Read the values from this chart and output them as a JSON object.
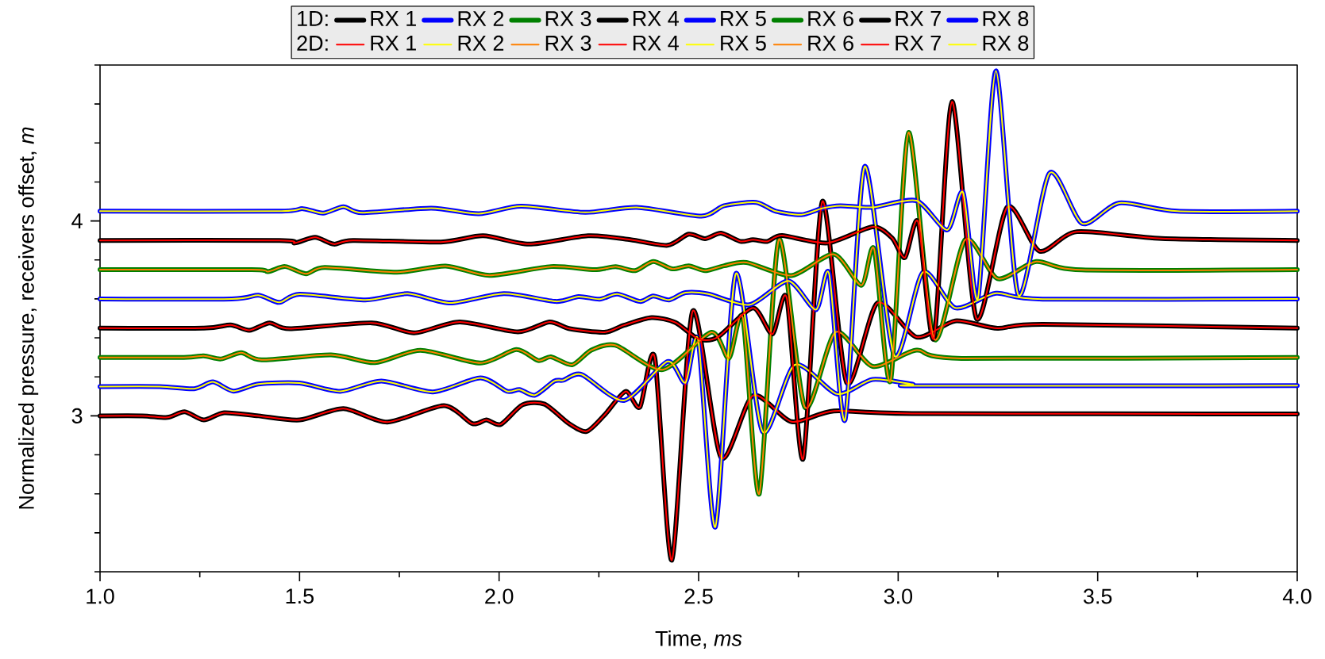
{
  "chart_data": {
    "type": "line",
    "xlabel": "Time, *ms*",
    "ylabel": "Normalized pressure, receivers offset, *m*",
    "annotations": [
      "1D:",
      "2D:"
    ],
    "legend": "top",
    "line_style": "solid",
    "xlim": [
      1.0,
      4.0
    ],
    "ylim": [
      2.2,
      4.8
    ],
    "xticks": [
      {
        "value": 1.0,
        "label": "1.0"
      },
      {
        "value": 1.25,
        "label": null
      },
      {
        "value": 1.5,
        "label": "1.5"
      },
      {
        "value": 1.75,
        "label": null
      },
      {
        "value": 2.0,
        "label": "2.0"
      },
      {
        "value": 2.25,
        "label": null
      },
      {
        "value": 2.5,
        "label": "2.5"
      },
      {
        "value": 2.75,
        "label": null
      },
      {
        "value": 3.0,
        "label": "3.0"
      },
      {
        "value": 3.25,
        "label": null
      },
      {
        "value": 3.5,
        "label": "3.5"
      },
      {
        "value": 3.75,
        "label": null
      },
      {
        "value": 4.0,
        "label": "4.0"
      }
    ],
    "yticks": [
      {
        "value": 2.2,
        "label": null
      },
      {
        "value": 2.4,
        "label": null
      },
      {
        "value": 2.6,
        "label": null
      },
      {
        "value": 2.8,
        "label": null
      },
      3,
      {
        "value": 3.2,
        "label": null
      },
      {
        "value": 3.4,
        "label": null
      },
      {
        "value": 3.6,
        "label": null
      },
      {
        "value": 3.8,
        "label": null
      },
      4,
      {
        "value": 4.2,
        "label": null
      },
      {
        "value": 4.4,
        "label": null
      },
      {
        "value": 4.6,
        "label": null
      },
      {
        "value": 4.8,
        "label": null
      }
    ],
    "series": [
      {
        "name": "RX 1",
        "color": "#000000",
        "x": [
          1.0,
          1.106,
          1.169,
          1.212,
          1.26,
          1.311,
          1.397,
          1.5,
          1.61,
          1.72,
          1.862,
          1.933,
          1.968,
          2.004,
          2.059,
          2.114,
          2.174,
          2.219,
          2.264,
          2.317,
          2.353,
          2.39,
          2.433,
          2.485,
          2.556,
          2.636,
          2.733,
          2.839,
          3.034,
          4.0
        ],
        "values": [
          3.0,
          3.0,
          2.992,
          3.021,
          2.979,
          3.016,
          3.0,
          2.979,
          3.037,
          2.968,
          3.052,
          2.96,
          2.979,
          2.956,
          3.057,
          3.06,
          2.962,
          2.92,
          3.004,
          3.125,
          3.045,
          3.299,
          2.26,
          3.537,
          2.787,
          3.104,
          2.97,
          3.025,
          3.012,
          3.01
        ]
      },
      {
        "name": "RX 2",
        "color": "#0000ff",
        "x": [
          1.0,
          1.15,
          1.236,
          1.283,
          1.334,
          1.397,
          1.5,
          1.602,
          1.705,
          1.834,
          1.953,
          2.02,
          2.051,
          2.09,
          2.138,
          2.161,
          2.207,
          2.313,
          2.422,
          2.467,
          2.499,
          2.542,
          2.593,
          2.66,
          2.741,
          2.847,
          2.936,
          3.036,
          3.062,
          4.0
        ],
        "values": [
          3.15,
          3.15,
          3.139,
          3.174,
          3.127,
          3.163,
          3.168,
          3.126,
          3.179,
          3.123,
          3.195,
          3.126,
          3.135,
          3.106,
          3.178,
          3.183,
          3.212,
          3.079,
          3.279,
          3.17,
          3.387,
          2.43,
          3.729,
          2.92,
          3.262,
          3.112,
          3.187,
          3.162,
          3.154,
          3.155
        ]
      },
      {
        "name": "RX 3",
        "color": "#008000",
        "x": [
          1.0,
          1.21,
          1.26,
          1.303,
          1.354,
          1.405,
          1.579,
          1.689,
          1.803,
          1.953,
          2.043,
          2.098,
          2.13,
          2.183,
          2.231,
          2.292,
          2.41,
          2.532,
          2.576,
          2.611,
          2.652,
          2.701,
          2.766,
          2.843,
          2.936,
          3.046,
          3.159,
          4.0
        ],
        "values": [
          3.3,
          3.3,
          3.308,
          3.292,
          3.324,
          3.287,
          3.313,
          3.273,
          3.336,
          3.271,
          3.34,
          3.284,
          3.303,
          3.262,
          3.337,
          3.362,
          3.237,
          3.429,
          3.295,
          3.5,
          2.6,
          3.904,
          3.045,
          3.429,
          3.254,
          3.337,
          3.295,
          3.3
        ]
      },
      {
        "name": "RX 4",
        "color": "#000000",
        "x": [
          1.0,
          1.26,
          1.327,
          1.374,
          1.425,
          1.476,
          1.681,
          1.787,
          1.901,
          2.047,
          2.126,
          2.177,
          2.264,
          2.313,
          2.382,
          2.442,
          2.499,
          2.548,
          2.636,
          2.685,
          2.721,
          2.762,
          2.81,
          2.871,
          2.948,
          3.046,
          3.143,
          3.249,
          3.362,
          4.0
        ],
        "values": [
          3.45,
          3.45,
          3.466,
          3.439,
          3.477,
          3.447,
          3.477,
          3.426,
          3.482,
          3.431,
          3.482,
          3.447,
          3.429,
          3.465,
          3.504,
          3.479,
          3.395,
          3.404,
          3.554,
          3.42,
          3.604,
          2.78,
          4.1,
          3.17,
          3.579,
          3.404,
          3.487,
          3.449,
          3.47,
          3.45
        ]
      },
      {
        "name": "RX 5",
        "color": "#0000ff",
        "x": [
          1.0,
          1.33,
          1.397,
          1.449,
          1.5,
          1.665,
          1.771,
          1.878,
          2.012,
          2.142,
          2.199,
          2.252,
          2.296,
          2.353,
          2.386,
          2.426,
          2.467,
          2.524,
          2.628,
          2.725,
          2.794,
          2.827,
          2.867,
          2.916,
          2.99,
          3.062,
          3.143,
          3.245,
          3.362,
          4.0
        ],
        "values": [
          3.6,
          3.6,
          3.619,
          3.582,
          3.624,
          3.595,
          3.627,
          3.579,
          3.627,
          3.587,
          3.612,
          3.599,
          3.625,
          3.587,
          3.615,
          3.595,
          3.632,
          3.625,
          3.57,
          3.692,
          3.545,
          3.729,
          2.98,
          4.279,
          3.31,
          3.737,
          3.554,
          3.629,
          3.599,
          3.6
        ]
      },
      {
        "name": "RX 6",
        "color": "#008000",
        "x": [
          1.0,
          1.38,
          1.421,
          1.464,
          1.516,
          1.563,
          1.744,
          1.866,
          1.976,
          2.13,
          2.239,
          2.292,
          2.341,
          2.386,
          2.434,
          2.475,
          2.516,
          2.564,
          2.62,
          2.733,
          2.839,
          2.908,
          2.94,
          2.981,
          3.026,
          3.09,
          3.168,
          3.249,
          3.346,
          3.46,
          4.0
        ],
        "values": [
          3.75,
          3.75,
          3.74,
          3.766,
          3.729,
          3.761,
          3.737,
          3.769,
          3.721,
          3.766,
          3.75,
          3.765,
          3.745,
          3.792,
          3.754,
          3.77,
          3.745,
          3.77,
          3.787,
          3.72,
          3.829,
          3.67,
          3.854,
          3.18,
          4.454,
          3.395,
          3.904,
          3.704,
          3.792,
          3.749,
          3.75
        ]
      },
      {
        "name": "RX 7",
        "color": "#000000",
        "x": [
          1.0,
          1.45,
          1.488,
          1.539,
          1.586,
          1.634,
          1.854,
          1.96,
          2.075,
          2.223,
          2.329,
          2.422,
          2.475,
          2.516,
          2.556,
          2.605,
          2.636,
          2.672,
          2.709,
          2.823,
          2.936,
          2.985,
          3.017,
          3.05,
          3.09,
          3.135,
          3.196,
          3.273,
          3.354,
          3.448,
          3.66,
          4.0
        ],
        "values": [
          3.9,
          3.9,
          3.887,
          3.916,
          3.881,
          3.9,
          3.892,
          3.924,
          3.881,
          3.924,
          3.904,
          3.875,
          3.932,
          3.909,
          3.937,
          3.895,
          3.904,
          3.895,
          3.925,
          3.887,
          3.97,
          3.912,
          3.812,
          3.995,
          3.4,
          4.612,
          3.5,
          4.07,
          3.845,
          3.945,
          3.91,
          3.9
        ]
      },
      {
        "name": "RX 8",
        "color": "#0000ff",
        "x": [
          1.0,
          1.445,
          1.508,
          1.559,
          1.61,
          1.657,
          1.83,
          1.949,
          2.055,
          2.216,
          2.345,
          2.507,
          2.564,
          2.644,
          2.693,
          2.758,
          2.81,
          2.855,
          2.936,
          3.046,
          3.123,
          3.163,
          3.2,
          3.245,
          3.301,
          3.379,
          3.461,
          3.554,
          3.7,
          4.0
        ],
        "values": [
          4.05,
          4.05,
          4.063,
          4.04,
          4.073,
          4.042,
          4.066,
          4.037,
          4.076,
          4.044,
          4.07,
          4.025,
          4.078,
          4.095,
          4.05,
          4.032,
          4.065,
          4.078,
          4.07,
          4.104,
          3.954,
          4.145,
          3.604,
          4.77,
          3.62,
          4.245,
          3.987,
          4.092,
          4.05,
          4.05
        ]
      },
      {
        "name": "RX 1",
        "color": "#ff0000",
        "x": [
          1.0,
          1.106,
          1.169,
          1.212,
          1.26,
          1.311,
          1.397,
          1.5,
          1.61,
          1.72,
          1.862,
          1.933,
          1.968,
          2.004,
          2.059,
          2.114,
          2.174,
          2.219,
          2.264,
          2.317,
          2.353,
          2.39,
          2.433,
          2.485,
          2.556,
          2.636,
          2.733,
          2.839,
          3.034,
          4.0
        ],
        "values": [
          3.0,
          3.0,
          2.992,
          3.021,
          2.979,
          3.016,
          3.0,
          2.979,
          3.037,
          2.968,
          3.052,
          2.96,
          2.979,
          2.956,
          3.057,
          3.06,
          2.962,
          2.92,
          3.004,
          3.125,
          3.045,
          3.299,
          2.26,
          3.537,
          2.787,
          3.104,
          2.97,
          3.025,
          3.012,
          3.01
        ]
      },
      {
        "name": "RX 2",
        "color": "#ffff00",
        "x": [
          1.0,
          1.15,
          1.236,
          1.283,
          1.334,
          1.397,
          1.5,
          1.602,
          1.705,
          1.834,
          1.953,
          2.02,
          2.051,
          2.09,
          2.138,
          2.161,
          2.207,
          2.313,
          2.422,
          2.467,
          2.499,
          2.542,
          2.593,
          2.66,
          2.741,
          2.847,
          2.936,
          3.036,
          3.062,
          4.0
        ],
        "values": [
          3.15,
          3.15,
          3.139,
          3.174,
          3.127,
          3.163,
          3.168,
          3.126,
          3.179,
          3.123,
          3.195,
          3.126,
          3.135,
          3.106,
          3.178,
          3.183,
          3.212,
          3.079,
          3.279,
          3.17,
          3.387,
          2.43,
          3.729,
          2.92,
          3.262,
          3.112,
          3.187,
          3.162,
          3.154,
          3.155
        ]
      },
      {
        "name": "RX 3",
        "color": "#ff8000",
        "x": [
          1.0,
          1.21,
          1.26,
          1.303,
          1.354,
          1.405,
          1.579,
          1.689,
          1.803,
          1.953,
          2.043,
          2.098,
          2.13,
          2.183,
          2.231,
          2.292,
          2.41,
          2.532,
          2.576,
          2.611,
          2.652,
          2.701,
          2.766,
          2.843,
          2.936,
          3.046,
          3.159,
          4.0
        ],
        "values": [
          3.3,
          3.3,
          3.308,
          3.292,
          3.324,
          3.287,
          3.313,
          3.273,
          3.336,
          3.271,
          3.34,
          3.284,
          3.303,
          3.262,
          3.337,
          3.362,
          3.237,
          3.429,
          3.295,
          3.5,
          2.6,
          3.904,
          3.045,
          3.429,
          3.254,
          3.337,
          3.295,
          3.3
        ]
      },
      {
        "name": "RX 4",
        "color": "#ff0000",
        "x": [
          1.0,
          1.26,
          1.327,
          1.374,
          1.425,
          1.476,
          1.681,
          1.787,
          1.901,
          2.047,
          2.126,
          2.177,
          2.264,
          2.313,
          2.382,
          2.442,
          2.499,
          2.548,
          2.636,
          2.685,
          2.721,
          2.762,
          2.81,
          2.871,
          2.948,
          3.046,
          3.143,
          3.249,
          3.362,
          4.0
        ],
        "values": [
          3.45,
          3.45,
          3.466,
          3.439,
          3.477,
          3.447,
          3.477,
          3.426,
          3.482,
          3.431,
          3.482,
          3.447,
          3.429,
          3.465,
          3.504,
          3.479,
          3.395,
          3.404,
          3.554,
          3.42,
          3.604,
          2.78,
          4.1,
          3.17,
          3.579,
          3.404,
          3.487,
          3.449,
          3.47,
          3.45
        ]
      },
      {
        "name": "RX 5",
        "color": "#ffff00",
        "x": [
          1.0,
          1.33,
          1.397,
          1.449,
          1.5,
          1.665,
          1.771,
          1.878,
          2.012,
          2.142,
          2.199,
          2.252,
          2.296,
          2.353,
          2.386,
          2.426,
          2.467,
          2.524,
          2.628,
          2.725,
          2.794,
          2.827,
          2.867,
          2.916,
          2.99,
          3.062,
          3.143,
          3.245,
          3.362,
          4.0
        ],
        "values": [
          3.6,
          3.6,
          3.619,
          3.582,
          3.624,
          3.595,
          3.627,
          3.579,
          3.627,
          3.587,
          3.612,
          3.599,
          3.625,
          3.587,
          3.615,
          3.595,
          3.632,
          3.625,
          3.57,
          3.692,
          3.545,
          3.729,
          2.98,
          4.279,
          3.31,
          3.737,
          3.554,
          3.629,
          3.599,
          3.6
        ]
      },
      {
        "name": "RX 6",
        "color": "#ff8000",
        "x": [
          1.0,
          1.38,
          1.421,
          1.464,
          1.516,
          1.563,
          1.744,
          1.866,
          1.976,
          2.13,
          2.239,
          2.292,
          2.341,
          2.386,
          2.434,
          2.475,
          2.516,
          2.564,
          2.62,
          2.733,
          2.839,
          2.908,
          2.94,
          2.981,
          3.026,
          3.09,
          3.168,
          3.249,
          3.346,
          3.46,
          4.0
        ],
        "values": [
          3.75,
          3.75,
          3.74,
          3.766,
          3.729,
          3.761,
          3.737,
          3.769,
          3.721,
          3.766,
          3.75,
          3.765,
          3.745,
          3.792,
          3.754,
          3.77,
          3.745,
          3.77,
          3.787,
          3.72,
          3.829,
          3.67,
          3.854,
          3.18,
          4.454,
          3.395,
          3.904,
          3.704,
          3.792,
          3.749,
          3.75
        ]
      },
      {
        "name": "RX 7",
        "color": "#ff0000",
        "x": [
          1.0,
          1.45,
          1.488,
          1.539,
          1.586,
          1.634,
          1.854,
          1.96,
          2.075,
          2.223,
          2.329,
          2.422,
          2.475,
          2.516,
          2.556,
          2.605,
          2.636,
          2.672,
          2.709,
          2.823,
          2.936,
          2.985,
          3.017,
          3.05,
          3.09,
          3.135,
          3.196,
          3.273,
          3.354,
          3.448,
          3.66,
          4.0
        ],
        "values": [
          3.9,
          3.9,
          3.887,
          3.916,
          3.881,
          3.9,
          3.892,
          3.924,
          3.881,
          3.924,
          3.904,
          3.875,
          3.932,
          3.909,
          3.937,
          3.895,
          3.904,
          3.895,
          3.925,
          3.887,
          3.97,
          3.912,
          3.812,
          3.995,
          3.4,
          4.612,
          3.5,
          4.07,
          3.845,
          3.945,
          3.91,
          3.9
        ]
      },
      {
        "name": "RX 8",
        "color": "#ffff00",
        "x": [
          1.0,
          1.445,
          1.508,
          1.559,
          1.61,
          1.657,
          1.83,
          1.949,
          2.055,
          2.216,
          2.345,
          2.507,
          2.564,
          2.644,
          2.693,
          2.758,
          2.81,
          2.855,
          2.936,
          3.046,
          3.123,
          3.163,
          3.2,
          3.245,
          3.301,
          3.379,
          3.461,
          3.554,
          3.7,
          4.0
        ],
        "values": [
          4.05,
          4.05,
          4.063,
          4.04,
          4.073,
          4.042,
          4.066,
          4.037,
          4.076,
          4.044,
          4.07,
          4.025,
          4.078,
          4.095,
          4.05,
          4.032,
          4.065,
          4.078,
          4.07,
          4.104,
          3.954,
          4.145,
          3.604,
          4.77,
          3.62,
          4.245,
          3.987,
          4.092,
          4.05,
          4.05
        ]
      }
    ]
  }
}
